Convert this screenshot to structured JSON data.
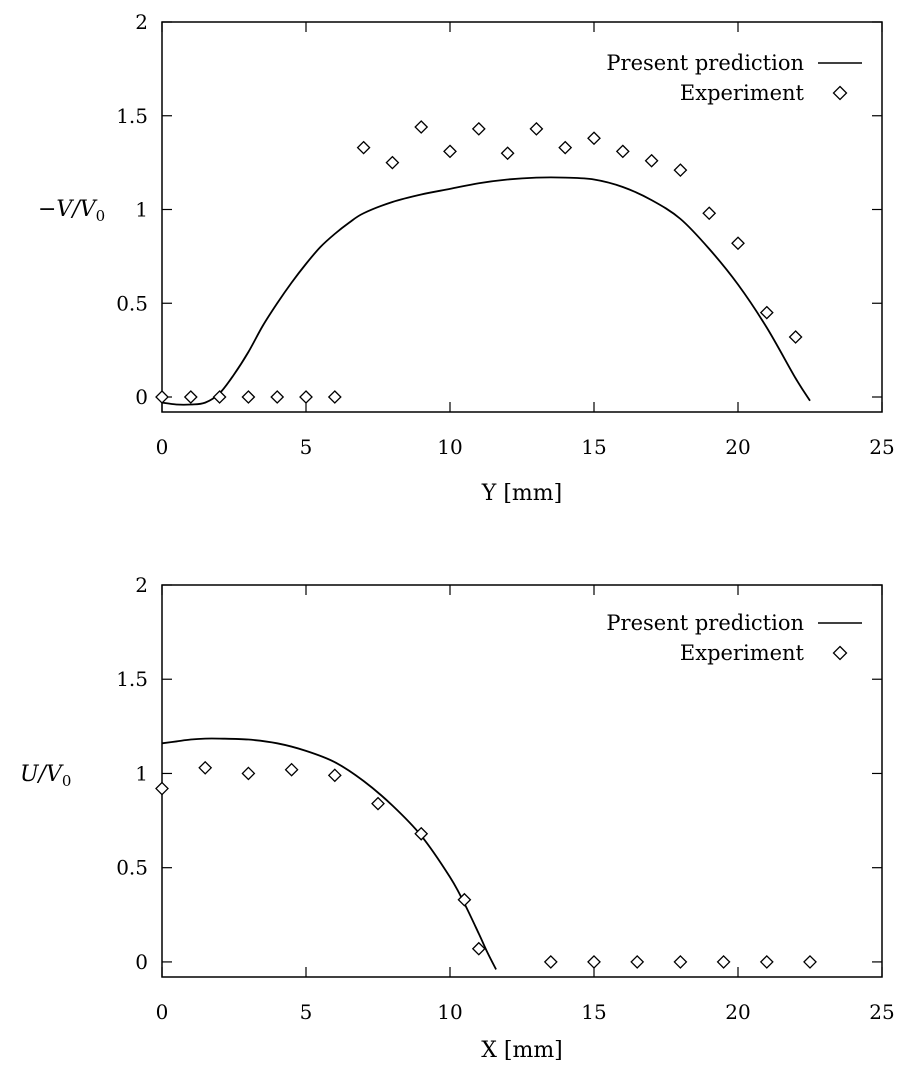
{
  "chart_data": [
    {
      "type": "line",
      "xlabel": "Y [mm]",
      "ylabel": "−V/V0",
      "xlim": [
        0,
        25
      ],
      "ylim": [
        -0.08,
        2
      ],
      "xticks": [
        "0",
        "5",
        "10",
        "15",
        "20",
        "25"
      ],
      "yticks": [
        "0",
        "0.5",
        "1",
        "1.5",
        "2"
      ],
      "grid": false,
      "legend_position": "top-right",
      "series": [
        {
          "name": "Present prediction",
          "style": "line",
          "x": [
            0,
            0.5,
            1,
            1.5,
            2,
            2.5,
            3,
            3.5,
            4,
            4.5,
            5,
            5.5,
            6,
            6.5,
            7,
            8,
            9,
            10,
            11,
            12,
            13,
            14,
            15,
            16,
            17,
            18,
            19,
            20,
            21,
            22,
            22.5
          ],
          "y": [
            -0.03,
            -0.04,
            -0.04,
            -0.03,
            0.02,
            0.12,
            0.24,
            0.38,
            0.5,
            0.61,
            0.71,
            0.8,
            0.87,
            0.93,
            0.98,
            1.04,
            1.08,
            1.11,
            1.14,
            1.16,
            1.17,
            1.17,
            1.16,
            1.12,
            1.05,
            0.95,
            0.79,
            0.6,
            0.37,
            0.1,
            -0.02
          ]
        },
        {
          "name": "Experiment",
          "style": "diamond",
          "x": [
            0,
            1,
            2,
            3,
            4,
            5,
            6,
            7,
            8,
            9,
            10,
            11,
            12,
            13,
            14,
            15,
            16,
            17,
            18,
            19,
            20,
            21,
            22
          ],
          "y": [
            0,
            0,
            0,
            0,
            0,
            0,
            0,
            1.33,
            1.25,
            1.44,
            1.31,
            1.43,
            1.3,
            1.43,
            1.33,
            1.38,
            1.31,
            1.26,
            1.21,
            0.98,
            0.82,
            0.45,
            0.32
          ]
        }
      ]
    },
    {
      "type": "line",
      "xlabel": "X [mm]",
      "ylabel": "U/V0",
      "xlim": [
        0,
        25
      ],
      "ylim": [
        -0.08,
        2
      ],
      "xticks": [
        "0",
        "5",
        "10",
        "15",
        "20",
        "25"
      ],
      "yticks": [
        "0",
        "0.5",
        "1",
        "1.5",
        "2"
      ],
      "grid": false,
      "legend_position": "top-right",
      "series": [
        {
          "name": "Present prediction",
          "style": "line",
          "x": [
            0,
            0.5,
            1,
            1.5,
            2,
            3,
            4,
            5,
            6,
            7,
            8,
            9,
            10,
            10.5,
            11,
            11.3,
            11.6
          ],
          "y": [
            1.16,
            1.17,
            1.18,
            1.185,
            1.185,
            1.18,
            1.16,
            1.12,
            1.06,
            0.96,
            0.83,
            0.67,
            0.45,
            0.31,
            0.15,
            0.05,
            -0.04
          ]
        },
        {
          "name": "Experiment",
          "style": "diamond",
          "x": [
            0,
            1.5,
            3,
            4.5,
            6,
            7.5,
            9,
            10.5,
            11,
            13.5,
            15,
            16.5,
            18,
            19.5,
            21,
            22.5
          ],
          "y": [
            0.92,
            1.03,
            1.0,
            1.02,
            0.99,
            0.84,
            0.68,
            0.33,
            0.07,
            0,
            0,
            0,
            0,
            0,
            0,
            0
          ]
        }
      ]
    }
  ]
}
